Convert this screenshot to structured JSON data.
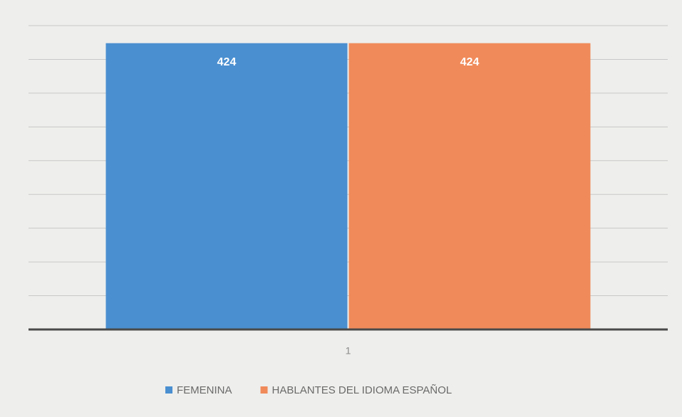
{
  "chart_data": {
    "type": "bar",
    "categories": [
      "1"
    ],
    "series": [
      {
        "name": "FEMENINA",
        "color": "#4a8fd0",
        "values": [
          424
        ]
      },
      {
        "name": "HABLANTES DEL IDIOMA ESPAÑOL",
        "color": "#f08a5a",
        "values": [
          424
        ]
      }
    ],
    "ylim": [
      0,
      450
    ],
    "yticks": [
      0,
      50,
      100,
      150,
      200,
      250,
      300,
      350,
      400,
      450
    ],
    "grid": true,
    "data_labels": true,
    "legend": "bottom"
  }
}
